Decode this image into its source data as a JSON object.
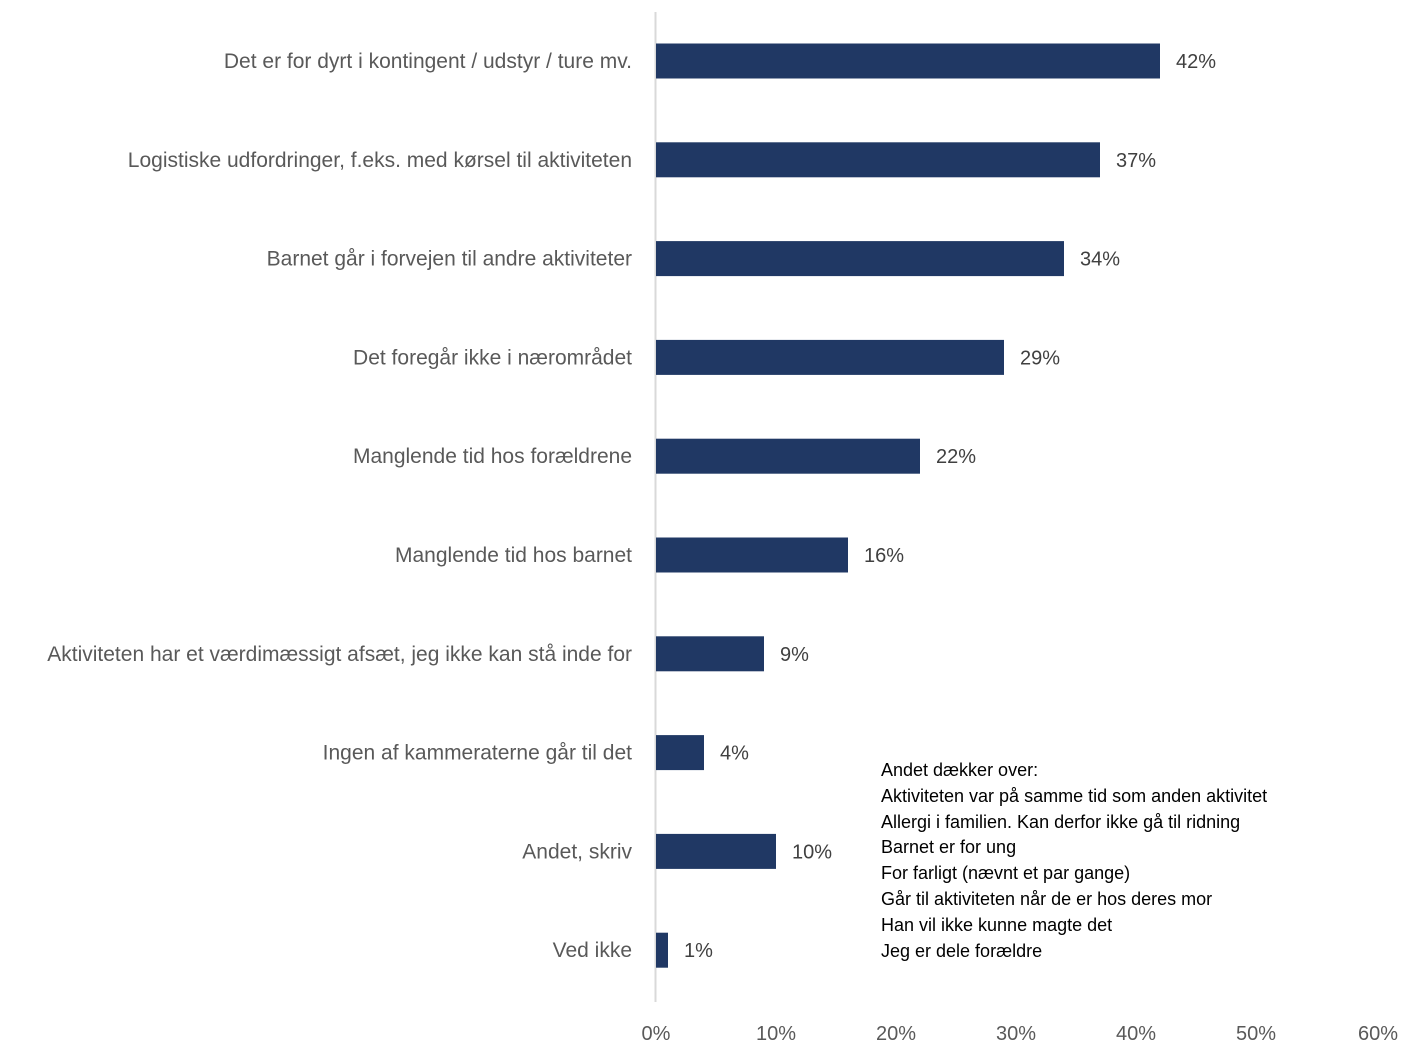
{
  "chart_data": {
    "type": "bar",
    "orientation": "horizontal",
    "categories": [
      "Det er for dyrt i kontingent / udstyr / ture mv.",
      "Logistiske udfordringer, f.eks. med kørsel til aktiviteten",
      "Barnet går i forvejen til andre aktiviteter",
      "Det foregår ikke i nærområdet",
      "Manglende tid hos forældrene",
      "Manglende tid hos barnet",
      "Aktiviteten har et værdimæssigt afsæt, jeg ikke kan stå inde for",
      "Ingen af kammeraterne går til det",
      "Andet, skriv",
      "Ved ikke"
    ],
    "values": [
      42,
      37,
      34,
      29,
      22,
      16,
      9,
      4,
      10,
      1
    ],
    "value_labels": [
      "42%",
      "37%",
      "34%",
      "29%",
      "22%",
      "16%",
      "9%",
      "4%",
      "10%",
      "1%"
    ],
    "xlim": [
      0,
      60
    ],
    "x_ticks": [
      "0%",
      "10%",
      "20%",
      "30%",
      "40%",
      "50%",
      "60%"
    ],
    "bar_color": "#203864",
    "axis_color": "#d9d9d9",
    "grid": false,
    "legend": "none"
  },
  "note": {
    "lines": [
      "Andet dækker over:",
      "Aktiviteten var på samme tid som anden aktivitet",
      "Allergi i familien. Kan derfor ikke gå til ridning",
      "Barnet er for ung",
      "For farligt (nævnt et par gange)",
      "Går til aktiviteten når de er hos deres mor",
      "Han vil ikke kunne magte det",
      "Jeg er dele forældre"
    ]
  }
}
